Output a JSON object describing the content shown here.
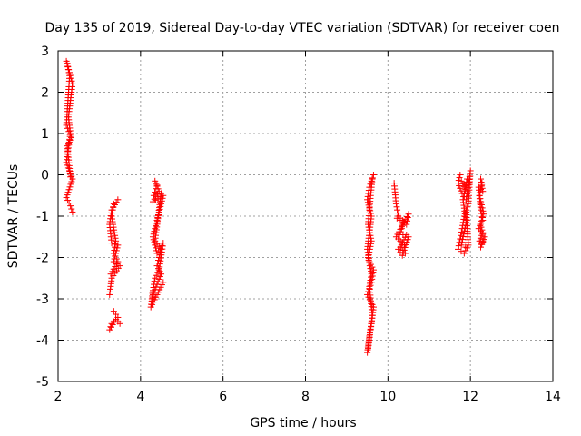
{
  "chart_data": {
    "type": "scatter",
    "title": "Day 135 of 2019, Sidereal Day-to-day VTEC variation (SDTVAR) for receiver coen",
    "xlabel": "GPS time / hours",
    "ylabel": "SDTVAR / TECUs",
    "xlim": [
      2,
      14
    ],
    "ylim": [
      -5,
      3
    ],
    "xticks": [
      2,
      4,
      6,
      8,
      10,
      12,
      14
    ],
    "yticks": [
      -5,
      -4,
      -3,
      -2,
      -1,
      0,
      1,
      2,
      3
    ],
    "xtick_labels": [
      "2",
      "4",
      "6",
      "8",
      "10",
      "12",
      "14"
    ],
    "ytick_labels": [
      "-5",
      "-4",
      "-3",
      "-2",
      "-1",
      "0",
      "1",
      "2",
      "3"
    ],
    "grid": true,
    "marker": "+",
    "color": "#ff0000",
    "segments": [
      {
        "x0": 2.2,
        "x1": 2.38,
        "points": [
          [
            2.2,
            2.75
          ],
          [
            2.35,
            2.2
          ],
          [
            2.25,
            1.4
          ],
          [
            2.3,
            1.0
          ],
          [
            2.2,
            0.3
          ],
          [
            2.35,
            -0.1
          ],
          [
            2.2,
            -0.55
          ],
          [
            2.3,
            -0.75
          ],
          [
            2.35,
            -0.9
          ]
        ]
      },
      {
        "x0": 2.2,
        "x1": 2.3,
        "points": [
          [
            2.22,
            2.7
          ],
          [
            2.28,
            2.4
          ],
          [
            2.2,
            1.2
          ],
          [
            2.32,
            0.9
          ],
          [
            2.22,
            0.7
          ],
          [
            2.3,
            -0.05
          ]
        ]
      },
      {
        "x0": 3.25,
        "x1": 3.5,
        "points": [
          [
            3.45,
            -0.6
          ],
          [
            3.3,
            -0.85
          ],
          [
            3.25,
            -1.2
          ],
          [
            3.3,
            -1.65
          ],
          [
            3.45,
            -1.7
          ],
          [
            3.35,
            -2.1
          ],
          [
            3.5,
            -2.2
          ],
          [
            3.3,
            -2.5
          ],
          [
            3.25,
            -2.9
          ]
        ]
      },
      {
        "x0": 3.25,
        "x1": 3.5,
        "points": [
          [
            3.35,
            -0.7
          ],
          [
            3.3,
            -1.0
          ],
          [
            3.4,
            -1.6
          ],
          [
            3.35,
            -1.9
          ],
          [
            3.45,
            -2.1
          ],
          [
            3.28,
            -2.4
          ]
        ]
      },
      {
        "x0": 3.25,
        "x1": 3.5,
        "points": [
          [
            3.35,
            -3.3
          ],
          [
            3.45,
            -3.45
          ],
          [
            3.3,
            -3.6
          ],
          [
            3.25,
            -3.75
          ],
          [
            3.4,
            -3.5
          ],
          [
            3.5,
            -3.6
          ]
        ]
      },
      {
        "x0": 4.25,
        "x1": 4.6,
        "points": [
          [
            4.35,
            -0.15
          ],
          [
            4.45,
            -0.4
          ],
          [
            4.3,
            -0.65
          ],
          [
            4.55,
            -0.5
          ],
          [
            4.3,
            -1.5
          ],
          [
            4.4,
            -1.9
          ],
          [
            4.55,
            -1.65
          ],
          [
            4.45,
            -2.3
          ],
          [
            4.35,
            -2.5
          ],
          [
            4.3,
            -2.8
          ],
          [
            4.25,
            -3.2
          ],
          [
            4.55,
            -2.6
          ]
        ]
      },
      {
        "x0": 4.25,
        "x1": 4.6,
        "points": [
          [
            4.4,
            -0.25
          ],
          [
            4.32,
            -0.5
          ],
          [
            4.5,
            -0.45
          ],
          [
            4.35,
            -1.6
          ],
          [
            4.5,
            -1.8
          ],
          [
            4.4,
            -2.2
          ],
          [
            4.5,
            -2.4
          ],
          [
            4.3,
            -2.9
          ],
          [
            4.28,
            -3.05
          ]
        ]
      },
      {
        "x0": 9.5,
        "x1": 9.7,
        "points": [
          [
            9.65,
            0.0
          ],
          [
            9.55,
            -0.3
          ],
          [
            9.5,
            -0.6
          ],
          [
            9.6,
            -1.0
          ],
          [
            9.55,
            -1.4
          ],
          [
            9.5,
            -1.8
          ],
          [
            9.55,
            -2.1
          ],
          [
            9.65,
            -2.3
          ],
          [
            9.6,
            -2.6
          ],
          [
            9.5,
            -2.9
          ],
          [
            9.65,
            -3.2
          ],
          [
            9.6,
            -3.6
          ],
          [
            9.55,
            -3.9
          ],
          [
            9.5,
            -4.3
          ]
        ]
      },
      {
        "x0": 9.5,
        "x1": 9.7,
        "points": [
          [
            9.62,
            -0.1
          ],
          [
            9.58,
            -0.5
          ],
          [
            9.52,
            -1.2
          ],
          [
            9.6,
            -1.6
          ],
          [
            9.52,
            -2.0
          ],
          [
            9.6,
            -2.4
          ],
          [
            9.55,
            -2.7
          ],
          [
            9.62,
            -3.4
          ],
          [
            9.57,
            -3.8
          ],
          [
            9.52,
            -4.2
          ]
        ]
      },
      {
        "x0": 10.15,
        "x1": 10.55,
        "points": [
          [
            10.15,
            -0.2
          ],
          [
            10.2,
            -0.7
          ],
          [
            10.25,
            -1.0
          ],
          [
            10.35,
            -1.1
          ],
          [
            10.45,
            -1.2
          ],
          [
            10.5,
            -0.95
          ],
          [
            10.2,
            -1.5
          ],
          [
            10.3,
            -1.6
          ],
          [
            10.4,
            -1.7
          ],
          [
            10.25,
            -1.8
          ],
          [
            10.35,
            -1.95
          ],
          [
            10.5,
            -1.5
          ]
        ]
      },
      {
        "x0": 10.15,
        "x1": 10.55,
        "points": [
          [
            10.22,
            -1.05
          ],
          [
            10.38,
            -1.15
          ],
          [
            10.28,
            -1.45
          ],
          [
            10.45,
            -1.45
          ],
          [
            10.3,
            -1.75
          ],
          [
            10.42,
            -1.9
          ]
        ]
      },
      {
        "x0": 11.7,
        "x1": 12.05,
        "points": [
          [
            11.75,
            0.0
          ],
          [
            11.7,
            -0.2
          ],
          [
            11.8,
            -0.45
          ],
          [
            11.9,
            -0.6
          ],
          [
            12.0,
            0.1
          ],
          [
            11.95,
            -0.7
          ],
          [
            11.85,
            -1.0
          ],
          [
            11.8,
            -1.3
          ],
          [
            11.75,
            -1.55
          ],
          [
            11.7,
            -1.8
          ],
          [
            11.85,
            -1.9
          ],
          [
            11.95,
            -1.7
          ],
          [
            11.9,
            -0.9
          ]
        ]
      },
      {
        "x0": 11.7,
        "x1": 12.05,
        "points": [
          [
            11.78,
            -0.15
          ],
          [
            11.88,
            -0.35
          ],
          [
            11.92,
            -0.1
          ],
          [
            11.82,
            -0.6
          ],
          [
            11.9,
            -1.15
          ],
          [
            11.78,
            -1.7
          ],
          [
            11.88,
            -1.75
          ]
        ]
      },
      {
        "x0": 12.2,
        "x1": 12.35,
        "points": [
          [
            12.25,
            -0.1
          ],
          [
            12.3,
            -0.4
          ],
          [
            12.2,
            -0.3
          ],
          [
            12.25,
            -0.85
          ],
          [
            12.3,
            -1.1
          ],
          [
            12.2,
            -1.3
          ],
          [
            12.35,
            -1.5
          ],
          [
            12.25,
            -1.75
          ],
          [
            12.3,
            -1.6
          ]
        ]
      },
      {
        "x0": 12.2,
        "x1": 12.35,
        "points": [
          [
            12.28,
            -0.2
          ],
          [
            12.22,
            -0.5
          ],
          [
            12.32,
            -0.95
          ],
          [
            12.24,
            -1.2
          ],
          [
            12.3,
            -1.4
          ],
          [
            12.22,
            -1.6
          ]
        ]
      }
    ]
  }
}
